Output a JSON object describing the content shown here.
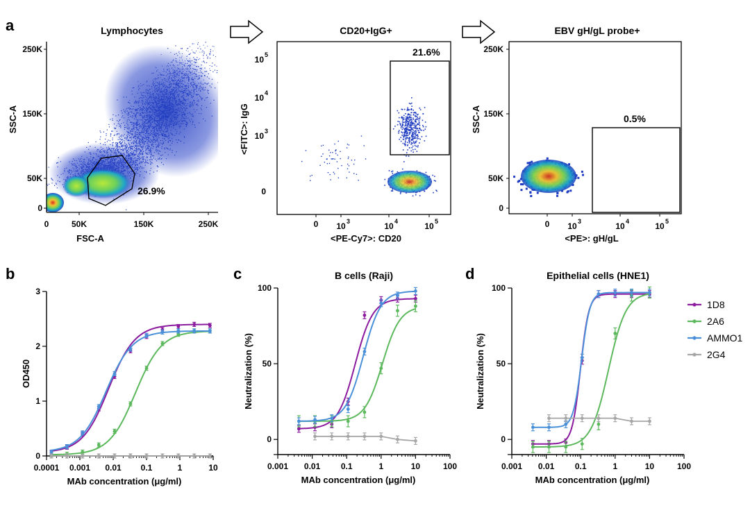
{
  "panels": {
    "a": "a",
    "b": "b",
    "c": "c",
    "d": "d"
  },
  "flow": {
    "lymph": {
      "title": "Lymphocytes",
      "xlabel": "FSC-A",
      "ylabel": "SSC-A",
      "xticks": [
        "0",
        "50K",
        "150K",
        "250K"
      ],
      "yticks": [
        "0",
        "50K",
        "150K",
        "250K"
      ],
      "gate_pct": "26.9%"
    },
    "cd20": {
      "title": "CD20+IgG+",
      "xlabel": "<PE-Cy7>: CD20",
      "ylabel": "<FITC>: IgG",
      "xticks": [
        "0",
        "10",
        "10",
        "10"
      ],
      "xtick_exp": [
        "",
        "3",
        "4",
        "5"
      ],
      "yticks": [
        "0",
        "10",
        "10",
        "10"
      ],
      "ytick_exp": [
        "",
        "3",
        "4",
        "5"
      ],
      "gate_pct": "21.6%"
    },
    "ebv": {
      "title": "EBV gH/gL probe+",
      "xlabel": "<PE>: gH/gL",
      "ylabel": "SSC-A",
      "xticks": [
        "0",
        "10",
        "10",
        "10"
      ],
      "xtick_exp": [
        "",
        "3",
        "4",
        "5"
      ],
      "yticks": [
        "0",
        "50K",
        "150K",
        "250K"
      ],
      "gate_pct": "0.5%"
    }
  },
  "legend": {
    "items": [
      {
        "name": "1D8",
        "color": "#8B1A9E"
      },
      {
        "name": "2A6",
        "color": "#5CB85C"
      },
      {
        "name": "AMMO1",
        "color": "#4A90D9"
      },
      {
        "name": "2G4",
        "color": "#A6A6A6"
      }
    ]
  },
  "chart_data": [
    {
      "panel": "b",
      "type": "line",
      "title": "",
      "xlabel": "MAb concentration (μg/ml)",
      "ylabel": "OD450",
      "xscale": "log",
      "xlim": [
        0.0001,
        10
      ],
      "ylim": [
        0,
        3
      ],
      "x_ticks": [
        "0.0001",
        "0.001",
        "0.01",
        "0.1",
        "1",
        "10"
      ],
      "y_ticks": [
        "0",
        "1",
        "2",
        "3"
      ],
      "x": [
        0.00014,
        0.00041,
        0.0012,
        0.0037,
        0.011,
        0.033,
        0.1,
        0.3,
        0.9,
        2.7,
        8.0
      ],
      "series": [
        {
          "name": "1D8",
          "values": [
            0.06,
            0.16,
            0.4,
            0.86,
            1.45,
            1.92,
            2.18,
            2.3,
            2.36,
            2.4,
            2.38
          ]
        },
        {
          "name": "2A6",
          "values": [
            0.02,
            0.03,
            0.07,
            0.2,
            0.45,
            0.95,
            1.6,
            2.05,
            2.22,
            2.28,
            2.28
          ]
        },
        {
          "name": "AMMO1",
          "values": [
            0.07,
            0.17,
            0.42,
            0.9,
            1.5,
            1.95,
            2.2,
            2.26,
            2.28,
            2.28,
            2.28
          ]
        },
        {
          "name": "2G4",
          "values": [
            0.0,
            0.0,
            0.0,
            0.0,
            0.0,
            0.0,
            0.0,
            0.0,
            0.0,
            0.0,
            0.0
          ]
        }
      ]
    },
    {
      "panel": "c",
      "type": "line",
      "title": "B cells (Raji)",
      "xlabel": "MAb concentration (μg/ml)",
      "ylabel": "Neutralization (%)",
      "xscale": "log",
      "xlim": [
        0.001,
        100
      ],
      "ylim": [
        -10,
        100
      ],
      "x_ticks": [
        "0.001",
        "0.01",
        "0.1",
        "1",
        "10",
        "100"
      ],
      "y_ticks": [
        "0",
        "50",
        "100"
      ],
      "x": [
        0.0041,
        0.012,
        0.037,
        0.11,
        0.33,
        1.0,
        3.0,
        10
      ],
      "series": [
        {
          "name": "1D8",
          "values": [
            7,
            8,
            10,
            25,
            82,
            92,
            93,
            93
          ]
        },
        {
          "name": "2A6",
          "values": [
            12,
            12,
            12,
            12,
            18,
            47,
            85,
            88
          ]
        },
        {
          "name": "AMMO1",
          "values": [
            12,
            13,
            14,
            20,
            58,
            90,
            95,
            98
          ]
        },
        {
          "name": "2G4",
          "values": [
            null,
            2,
            2,
            2,
            2,
            2,
            0,
            -1
          ]
        }
      ]
    },
    {
      "panel": "d",
      "type": "line",
      "title": "Epithelial cells (HNE1)",
      "xlabel": "MAb concentration (μg/ml)",
      "ylabel": "Neutralization (%)",
      "xscale": "log",
      "xlim": [
        0.001,
        100
      ],
      "ylim": [
        -10,
        100
      ],
      "x_ticks": [
        "0.001",
        "0.01",
        "0.1",
        "1",
        "10",
        "100"
      ],
      "y_ticks": [
        "0",
        "50",
        "100"
      ],
      "x": [
        0.0041,
        0.012,
        0.037,
        0.11,
        0.33,
        1.0,
        3.0,
        10
      ],
      "series": [
        {
          "name": "1D8",
          "values": [
            -3,
            -3,
            -2,
            52,
            96,
            96,
            96,
            96
          ]
        },
        {
          "name": "2A6",
          "values": [
            -5,
            -5,
            -5,
            -3,
            10,
            70,
            95,
            97
          ]
        },
        {
          "name": "AMMO1",
          "values": [
            8,
            8,
            10,
            54,
            96,
            97,
            97,
            97
          ]
        },
        {
          "name": "2G4",
          "values": [
            null,
            14,
            14,
            14,
            14,
            14,
            12,
            12
          ]
        }
      ]
    }
  ]
}
